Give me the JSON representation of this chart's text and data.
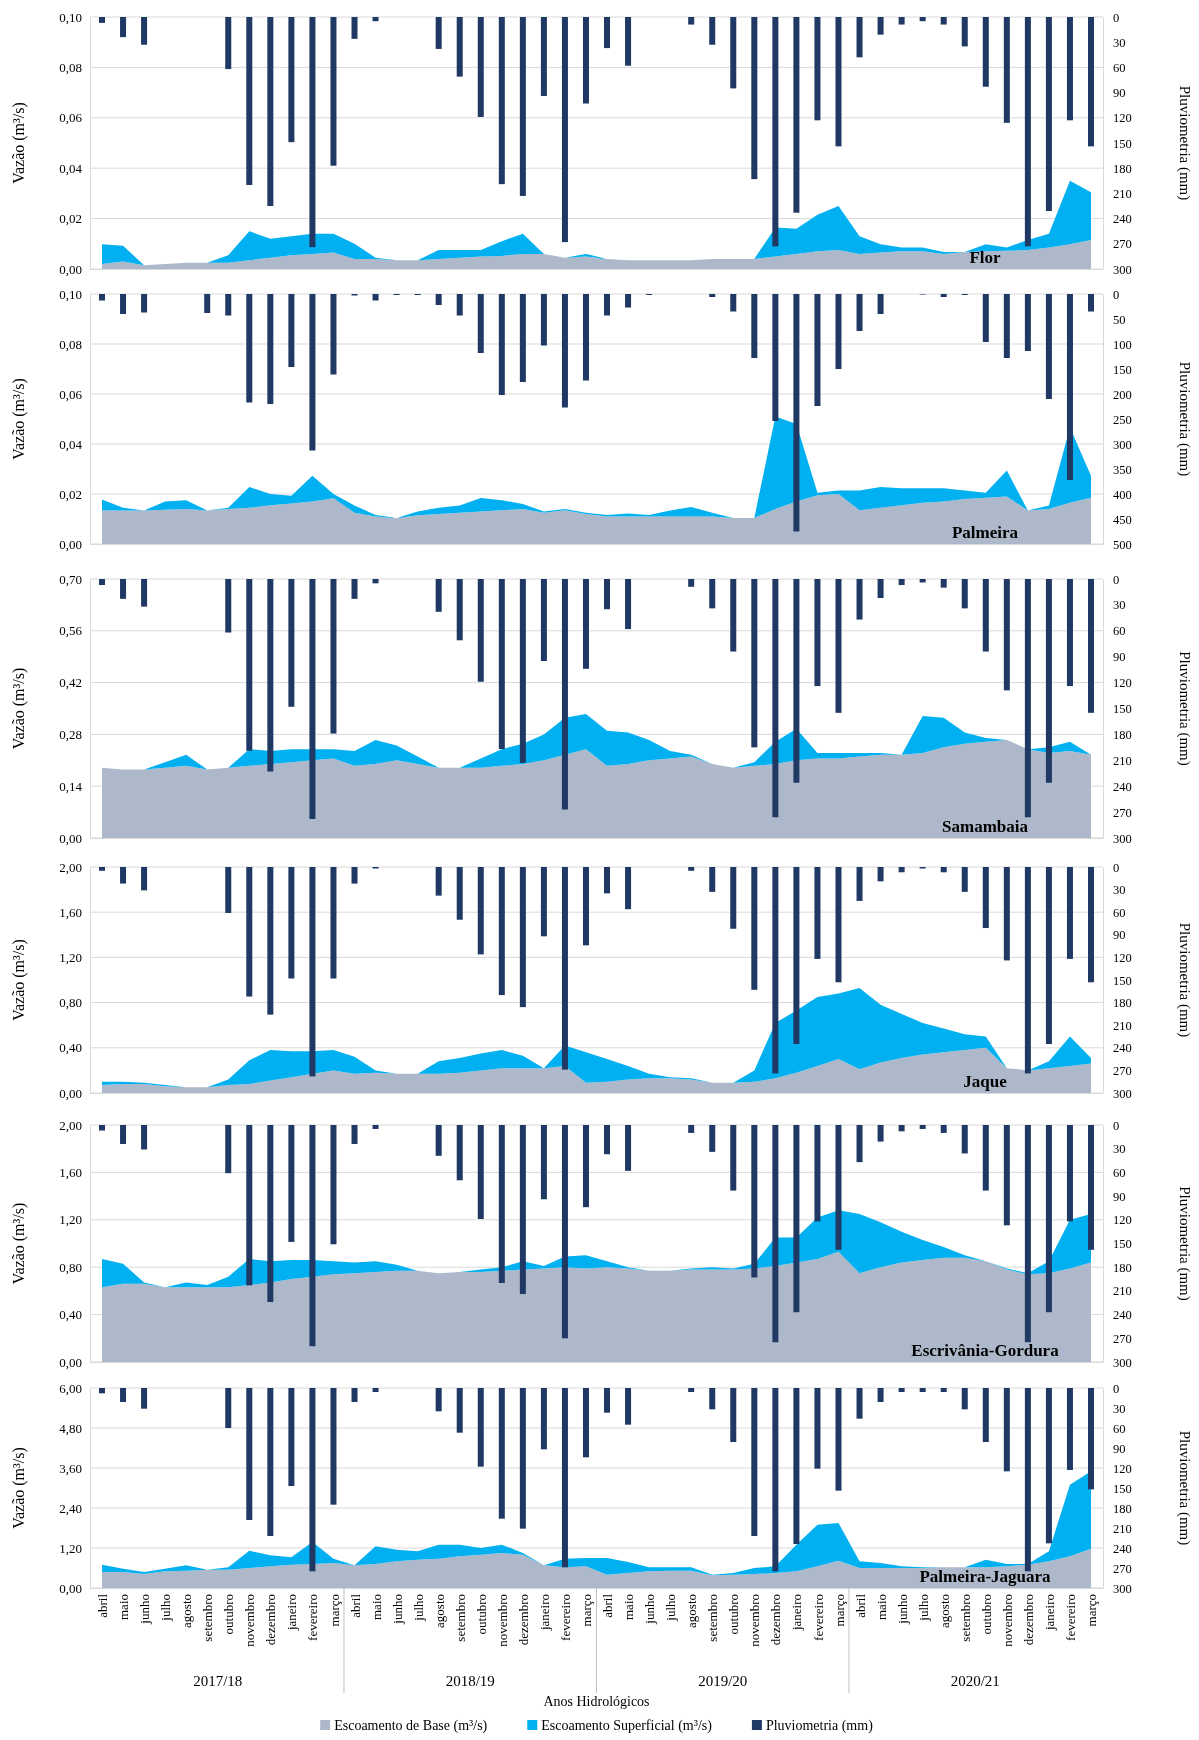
{
  "chart_data": [
    {
      "type": "area",
      "title": "Flor",
      "stacked": true,
      "grid": "y",
      "ylabel": "Vazão (m³/s)",
      "y2label": "Pluviometria (mm)",
      "categories": [
        null,
        null,
        null,
        null,
        null,
        null,
        null,
        null,
        null,
        null,
        null,
        null,
        null,
        null,
        null,
        null,
        null,
        null,
        null,
        null,
        null,
        null,
        null,
        null,
        null,
        null,
        null,
        null,
        null,
        null,
        null,
        null,
        null,
        null,
        null,
        null,
        null,
        null,
        null,
        null,
        null,
        null,
        null,
        null,
        null,
        null,
        null,
        null
      ],
      "ylim": [
        0,
        0.1
      ],
      "yticks": [
        {
          "value": 0,
          "label": "0,00"
        },
        {
          "value": 0.02,
          "label": "0,02"
        },
        {
          "value": 0.04,
          "label": "0,04"
        },
        {
          "value": 0.06,
          "label": "0,06"
        },
        {
          "value": 0.08,
          "label": "0,08"
        },
        {
          "value": 0.1,
          "label": "0,10"
        }
      ],
      "y2lim": [
        300,
        0
      ],
      "y2ticks": [
        0,
        30,
        60,
        90,
        120,
        150,
        180,
        210,
        240,
        270,
        300
      ],
      "series": [
        {
          "color": "#adb9ca",
          "values": [
            0.002,
            0.003,
            0.0015,
            0.002,
            0.0025,
            0.0025,
            0.0025,
            0.0035,
            0.0045,
            0.0055,
            0.006,
            0.0065,
            0.004,
            0.004,
            0.0035,
            0.0035,
            0.004,
            0.0045,
            0.005,
            0.0052,
            0.006,
            0.006,
            0.0045,
            0.005,
            0.004,
            0.0035,
            0.0035,
            0.0035,
            0.0035,
            0.004,
            0.004,
            0.004,
            0.005,
            0.006,
            0.007,
            0.0075,
            0.006,
            0.0065,
            0.007,
            0.007,
            0.006,
            0.0067,
            0.007,
            0.0072,
            0.0075,
            0.0085,
            0.0098,
            0.0115
          ]
        },
        {
          "color": "#00b0f0",
          "values": [
            0.0078,
            0.0062,
            0,
            0,
            0,
            0,
            0.003,
            0.0115,
            0.0075,
            0.0075,
            0.008,
            0.0075,
            0.006,
            0.0005,
            0,
            0,
            0.0035,
            0.003,
            0.0025,
            0.0058,
            0.008,
            0,
            0,
            0.001,
            0,
            0,
            0,
            0,
            0,
            0,
            0,
            0,
            0.0115,
            0.01,
            0.0145,
            0.0175,
            0.007,
            0.0033,
            0.0015,
            0.0015,
            0.0007,
            0,
            0.0028,
            0.0013,
            0.004,
            0.0055,
            0.0252,
            0.019
          ]
        },
        {
          "type": "bar",
          "axis": "y2",
          "color": "#1f3864",
          "values": [
            7,
            24,
            33,
            0,
            0,
            0,
            62,
            200,
            225,
            149,
            274,
            177,
            26,
            5,
            0,
            0,
            38,
            71,
            119,
            199,
            213,
            94,
            268,
            103,
            37,
            58,
            0,
            0,
            9,
            33,
            85,
            193,
            273,
            233,
            123,
            154,
            48,
            21,
            9,
            5,
            9,
            35,
            83,
            126,
            273,
            231,
            123,
            154
          ]
        }
      ]
    },
    {
      "type": "area",
      "title": "Palmeira",
      "stacked": true,
      "grid": "y",
      "ylabel": "Vazão (m³/s)",
      "y2label": "Pluviometria (mm)",
      "categories": [
        null,
        null,
        null,
        null,
        null,
        null,
        null,
        null,
        null,
        null,
        null,
        null,
        null,
        null,
        null,
        null,
        null,
        null,
        null,
        null,
        null,
        null,
        null,
        null,
        null,
        null,
        null,
        null,
        null,
        null,
        null,
        null,
        null,
        null,
        null,
        null,
        null,
        null,
        null,
        null,
        null,
        null,
        null,
        null,
        null,
        null,
        null,
        null
      ],
      "ylim": [
        0,
        0.1
      ],
      "yticks": [
        {
          "value": 0,
          "label": "0,00"
        },
        {
          "value": 0.02,
          "label": "0,02"
        },
        {
          "value": 0.04,
          "label": "0,04"
        },
        {
          "value": 0.06,
          "label": "0,06"
        },
        {
          "value": 0.08,
          "label": "0,08"
        },
        {
          "value": 0.1,
          "label": "0,10"
        }
      ],
      "y2lim": [
        500,
        0
      ],
      "y2ticks": [
        0,
        50,
        100,
        150,
        200,
        250,
        300,
        350,
        400,
        450,
        500
      ],
      "series": [
        {
          "color": "#adb9ca",
          "values": [
            0.0134,
            0.0134,
            0.0134,
            0.0137,
            0.014,
            0.0134,
            0.014,
            0.0145,
            0.0155,
            0.0162,
            0.017,
            0.0183,
            0.0125,
            0.011,
            0.0104,
            0.0115,
            0.012,
            0.0125,
            0.013,
            0.0135,
            0.014,
            0.0125,
            0.0135,
            0.012,
            0.011,
            0.011,
            0.011,
            0.011,
            0.011,
            0.011,
            0.0104,
            0.0104,
            0.014,
            0.017,
            0.0195,
            0.02,
            0.0135,
            0.0145,
            0.0155,
            0.0165,
            0.017,
            0.018,
            0.0185,
            0.019,
            0.0134,
            0.014,
            0.0165,
            0.0185
          ]
        },
        {
          "color": "#00b0f0",
          "values": [
            0.0044,
            0.0011,
            0,
            0.0033,
            0.0035,
            0,
            0.0005,
            0.0083,
            0.0045,
            0.0031,
            0.0103,
            0.0017,
            0.0029,
            0.0006,
            0,
            0.0015,
            0.0025,
            0.0029,
            0.0054,
            0.004,
            0.002,
            0.0005,
            0.0005,
            0.0005,
            0.0006,
            0.0012,
            0.0006,
            0.0024,
            0.0038,
            0.0015,
            0,
            0,
            0.037,
            0.031,
            0.001,
            0.0014,
            0.0079,
            0.0083,
            0.0068,
            0.0058,
            0.0053,
            0.0034,
            0.002,
            0.0104,
            0,
            0.0014,
            0.0301,
            0.0088
          ]
        },
        {
          "type": "bar",
          "axis": "y2",
          "color": "#1f3864",
          "values": [
            13,
            40,
            37,
            0,
            0,
            38,
            43,
            217,
            220,
            146,
            313,
            161,
            3,
            13,
            2,
            2,
            22,
            43,
            118,
            202,
            176,
            103,
            227,
            173,
            43,
            27,
            2,
            0,
            0,
            6,
            35,
            128,
            254,
            475,
            224,
            150,
            74,
            40,
            0,
            1,
            6,
            2,
            96,
            128,
            114,
            210,
            372,
            35
          ]
        }
      ]
    },
    {
      "type": "area",
      "title": "Samambaia",
      "stacked": true,
      "grid": "y",
      "ylabel": "Vazão (m³/s)",
      "y2label": "Pluviometria (mm)",
      "categories": [
        null,
        null,
        null,
        null,
        null,
        null,
        null,
        null,
        null,
        null,
        null,
        null,
        null,
        null,
        null,
        null,
        null,
        null,
        null,
        null,
        null,
        null,
        null,
        null,
        null,
        null,
        null,
        null,
        null,
        null,
        null,
        null,
        null,
        null,
        null,
        null,
        null,
        null,
        null,
        null,
        null,
        null,
        null,
        null,
        null,
        null,
        null,
        null
      ],
      "ylim": [
        0,
        0.7
      ],
      "yticks": [
        {
          "value": 0,
          "label": "0,00"
        },
        {
          "value": 0.14,
          "label": "0,14"
        },
        {
          "value": 0.28,
          "label": "0,28"
        },
        {
          "value": 0.42,
          "label": "0,42"
        },
        {
          "value": 0.56,
          "label": "0,56"
        },
        {
          "value": 0.7,
          "label": "0,70"
        }
      ],
      "y2lim": [
        300,
        0
      ],
      "y2ticks": [
        0,
        30,
        60,
        90,
        120,
        150,
        180,
        210,
        240,
        270,
        300
      ],
      "series": [
        {
          "color": "#adb9ca",
          "values": [
            0.19,
            0.185,
            0.185,
            0.19,
            0.195,
            0.185,
            0.19,
            0.195,
            0.2,
            0.205,
            0.21,
            0.215,
            0.195,
            0.2,
            0.21,
            0.2,
            0.19,
            0.19,
            0.19,
            0.195,
            0.2,
            0.21,
            0.225,
            0.24,
            0.195,
            0.2,
            0.21,
            0.215,
            0.22,
            0.2,
            0.19,
            0.195,
            0.2,
            0.21,
            0.215,
            0.215,
            0.22,
            0.225,
            0.225,
            0.23,
            0.245,
            0.255,
            0.26,
            0.265,
            0.24,
            0.23,
            0.235,
            0.225
          ]
        },
        {
          "color": "#00b0f0",
          "values": [
            0,
            0,
            0,
            0.015,
            0.03,
            0,
            0,
            0.045,
            0.035,
            0.035,
            0.03,
            0.025,
            0.04,
            0.065,
            0.04,
            0.02,
            0,
            0,
            0.025,
            0.045,
            0.055,
            0.07,
            0.1,
            0.095,
            0.095,
            0.085,
            0.055,
            0.02,
            0.005,
            0,
            0,
            0.01,
            0.06,
            0.085,
            0.015,
            0.015,
            0.01,
            0.005,
            0,
            0.1,
            0.08,
            0.03,
            0.01,
            0,
            0,
            0.015,
            0.025,
            0
          ]
        },
        {
          "type": "bar",
          "axis": "y2",
          "color": "#1f3864",
          "values": [
            7,
            23,
            32,
            0,
            0,
            0,
            62,
            199,
            223,
            148,
            278,
            179,
            23,
            5,
            0,
            0,
            38,
            71,
            119,
            197,
            213,
            95,
            267,
            104,
            35,
            58,
            0,
            0,
            9,
            34,
            84,
            195,
            276,
            236,
            124,
            155,
            47,
            22,
            7,
            4,
            10,
            34,
            84,
            129,
            276,
            236,
            124,
            155
          ]
        }
      ]
    },
    {
      "type": "area",
      "title": "Jaque",
      "stacked": true,
      "grid": "y",
      "ylabel": "Vazão (m³/s)",
      "y2label": "Pluviometria (mm)",
      "categories": [
        null,
        null,
        null,
        null,
        null,
        null,
        null,
        null,
        null,
        null,
        null,
        null,
        null,
        null,
        null,
        null,
        null,
        null,
        null,
        null,
        null,
        null,
        null,
        null,
        null,
        null,
        null,
        null,
        null,
        null,
        null,
        null,
        null,
        null,
        null,
        null,
        null,
        null,
        null,
        null,
        null,
        null,
        null,
        null,
        null,
        null,
        null,
        null
      ],
      "ylim": [
        0,
        2
      ],
      "yticks": [
        {
          "value": 0,
          "label": "0,00"
        },
        {
          "value": 0.4,
          "label": "0,40"
        },
        {
          "value": 0.8,
          "label": "0,80"
        },
        {
          "value": 1.2,
          "label": "1,20"
        },
        {
          "value": 1.6,
          "label": "1,60"
        },
        {
          "value": 2,
          "label": "2,00"
        }
      ],
      "y2lim": [
        300,
        0
      ],
      "y2ticks": [
        0,
        30,
        60,
        90,
        120,
        150,
        180,
        210,
        240,
        270,
        300
      ],
      "series": [
        {
          "color": "#adb9ca",
          "values": [
            0.07,
            0.08,
            0.08,
            0.06,
            0.05,
            0.05,
            0.07,
            0.08,
            0.11,
            0.14,
            0.17,
            0.2,
            0.17,
            0.18,
            0.17,
            0.17,
            0.17,
            0.18,
            0.2,
            0.22,
            0.22,
            0.22,
            0.24,
            0.09,
            0.1,
            0.12,
            0.13,
            0.13,
            0.12,
            0.09,
            0.09,
            0.1,
            0.13,
            0.18,
            0.24,
            0.3,
            0.21,
            0.27,
            0.31,
            0.34,
            0.36,
            0.38,
            0.4,
            0.22,
            0.2,
            0.22,
            0.24,
            0.26
          ]
        },
        {
          "color": "#00b0f0",
          "values": [
            0.03,
            0.02,
            0.01,
            0.01,
            0,
            0,
            0.05,
            0.21,
            0.27,
            0.23,
            0.2,
            0.18,
            0.15,
            0.02,
            0,
            0,
            0.11,
            0.13,
            0.15,
            0.16,
            0.11,
            0,
            0.18,
            0.27,
            0.2,
            0.12,
            0.04,
            0.01,
            0.01,
            0,
            0,
            0.1,
            0.49,
            0.55,
            0.61,
            0.58,
            0.72,
            0.51,
            0.39,
            0.28,
            0.21,
            0.14,
            0.1,
            0,
            0,
            0.06,
            0.26,
            0.05
          ]
        },
        {
          "type": "bar",
          "axis": "y2",
          "color": "#1f3864",
          "values": [
            5,
            22,
            31,
            0,
            0,
            0,
            61,
            172,
            196,
            148,
            278,
            148,
            22,
            2,
            0,
            0,
            38,
            70,
            116,
            170,
            186,
            92,
            269,
            104,
            35,
            56,
            0,
            0,
            5,
            33,
            82,
            163,
            274,
            235,
            122,
            153,
            45,
            19,
            7,
            2,
            7,
            33,
            81,
            124,
            274,
            235,
            122,
            153
          ]
        }
      ]
    },
    {
      "type": "area",
      "title": "Escrivânia-Gordura",
      "stacked": true,
      "grid": "y",
      "ylabel": "Vazão (m³/s)",
      "y2label": "Pluviometria (mm)",
      "categories": [
        null,
        null,
        null,
        null,
        null,
        null,
        null,
        null,
        null,
        null,
        null,
        null,
        null,
        null,
        null,
        null,
        null,
        null,
        null,
        null,
        null,
        null,
        null,
        null,
        null,
        null,
        null,
        null,
        null,
        null,
        null,
        null,
        null,
        null,
        null,
        null,
        null,
        null,
        null,
        null,
        null,
        null,
        null,
        null,
        null,
        null,
        null,
        null
      ],
      "ylim": [
        0,
        2
      ],
      "yticks": [
        {
          "value": 0,
          "label": "0,00"
        },
        {
          "value": 0.4,
          "label": "0,40"
        },
        {
          "value": 0.8,
          "label": "0,80"
        },
        {
          "value": 1.2,
          "label": "1,20"
        },
        {
          "value": 1.6,
          "label": "1,60"
        },
        {
          "value": 2,
          "label": "2,00"
        }
      ],
      "y2lim": [
        300,
        0
      ],
      "y2ticks": [
        0,
        30,
        60,
        90,
        120,
        150,
        180,
        210,
        240,
        270,
        300
      ],
      "series": [
        {
          "color": "#adb9ca",
          "values": [
            0.63,
            0.66,
            0.66,
            0.63,
            0.63,
            0.63,
            0.63,
            0.65,
            0.67,
            0.7,
            0.72,
            0.74,
            0.75,
            0.76,
            0.77,
            0.77,
            0.75,
            0.76,
            0.76,
            0.77,
            0.78,
            0.79,
            0.8,
            0.79,
            0.8,
            0.79,
            0.77,
            0.77,
            0.78,
            0.78,
            0.78,
            0.79,
            0.81,
            0.84,
            0.87,
            0.93,
            0.75,
            0.8,
            0.84,
            0.86,
            0.88,
            0.88,
            0.85,
            0.78,
            0.74,
            0.75,
            0.79,
            0.84
          ]
        },
        {
          "color": "#00b0f0",
          "values": [
            0.24,
            0.17,
            0.01,
            0,
            0.04,
            0.02,
            0.09,
            0.22,
            0.18,
            0.16,
            0.14,
            0.11,
            0.09,
            0.09,
            0.05,
            0,
            0,
            0,
            0.02,
            0.03,
            0.07,
            0.02,
            0.09,
            0.11,
            0.05,
            0.01,
            0,
            0,
            0.01,
            0.02,
            0.01,
            0.04,
            0.24,
            0.21,
            0.35,
            0.35,
            0.5,
            0.38,
            0.26,
            0.17,
            0.09,
            0.02,
            0,
            0.01,
            0.01,
            0.1,
            0.41,
            0.41
          ]
        },
        {
          "type": "bar",
          "axis": "y2",
          "color": "#1f3864",
          "values": [
            7,
            24,
            31,
            0,
            0,
            0,
            61,
            203,
            224,
            148,
            280,
            151,
            24,
            5,
            0,
            0,
            39,
            70,
            119,
            200,
            214,
            94,
            270,
            104,
            37,
            58,
            0,
            0,
            10,
            34,
            83,
            193,
            275,
            237,
            122,
            158,
            47,
            21,
            8,
            5,
            10,
            36,
            83,
            127,
            275,
            237,
            122,
            158
          ]
        }
      ]
    },
    {
      "type": "area",
      "title": "Palmeira-Jaguara",
      "stacked": true,
      "grid": "y",
      "legend": "bottom",
      "ylabel": "Vazão (m³/s)",
      "y2label": "Pluviometria (mm)",
      "xlabel": "Anos Hidrológicos",
      "annotations": [
        "2017/18",
        "2018/19",
        "2019/20",
        "2020/21"
      ],
      "categories": [
        "abril",
        "maio",
        "junho",
        "julho",
        "agosto",
        "setembro",
        "outubro",
        "novembro",
        "dezembro",
        "janeiro",
        "fevereiro",
        "março",
        "abril",
        "maio",
        "junho",
        "julho",
        "agosto",
        "setembro",
        "outubro",
        "novembro",
        "dezembro",
        "janeiro",
        "fevereiro",
        "março",
        "abril",
        "maio",
        "junho",
        "julho",
        "agosto",
        "setembro",
        "outubro",
        "novembro",
        "dezembro",
        "janeiro",
        "fevereiro",
        "março",
        "abril",
        "maio",
        "junho",
        "julho",
        "agosto",
        "setembro",
        "outubro",
        "novembro",
        "dezembro",
        "janeiro",
        "fevereiro",
        "março"
      ],
      "ylim": [
        0,
        6
      ],
      "yticks": [
        {
          "value": 0,
          "label": "0,00"
        },
        {
          "value": 1.2,
          "label": "1,20"
        },
        {
          "value": 2.4,
          "label": "2,40"
        },
        {
          "value": 3.6,
          "label": "3,60"
        },
        {
          "value": 4.8,
          "label": "4,80"
        },
        {
          "value": 6,
          "label": "6,00"
        }
      ],
      "y2lim": [
        300,
        0
      ],
      "y2ticks": [
        0,
        30,
        60,
        90,
        120,
        150,
        180,
        210,
        240,
        270,
        300
      ],
      "series": [
        {
          "name": "Escoamento de Base (m³/s)",
          "color": "#adb9ca",
          "values": [
            0.48,
            0.48,
            0.42,
            0.5,
            0.52,
            0.55,
            0.55,
            0.6,
            0.65,
            0.7,
            0.72,
            0.75,
            0.68,
            0.72,
            0.8,
            0.85,
            0.88,
            0.95,
            1,
            1.05,
            1,
            0.68,
            0.62,
            0.65,
            0.4,
            0.45,
            0.5,
            0.52,
            0.52,
            0.38,
            0.4,
            0.42,
            0.45,
            0.5,
            0.65,
            0.82,
            0.6,
            0.6,
            0.6,
            0.6,
            0.62,
            0.62,
            0.62,
            0.65,
            0.7,
            0.8,
            0.95,
            1.18
          ]
        },
        {
          "name": "Escoamento Superficial (m³/s)",
          "color": "#00b0f0",
          "values": [
            0.22,
            0.1,
            0.06,
            0.08,
            0.16,
            0,
            0.07,
            0.52,
            0.33,
            0.22,
            0.66,
            0.13,
            0,
            0.53,
            0.35,
            0.25,
            0.42,
            0.35,
            0.2,
            0.25,
            0.05,
            0,
            0.26,
            0.25,
            0.5,
            0.33,
            0.12,
            0.1,
            0.1,
            0.02,
            0.05,
            0.18,
            0.2,
            0.8,
            1.25,
            1.13,
            0.2,
            0.15,
            0.05,
            0.02,
            0,
            0,
            0.23,
            0.07,
            0.02,
            0.3,
            2.15,
            2.32
          ]
        },
        {
          "type": "bar",
          "axis": "y2",
          "name": "Pluviometria (mm)",
          "color": "#1f3864",
          "values": [
            8,
            21,
            31,
            0,
            0,
            0,
            60,
            198,
            222,
            147,
            275,
            175,
            21,
            6,
            0,
            0,
            35,
            67,
            118,
            196,
            211,
            92,
            269,
            104,
            37,
            55,
            0,
            0,
            6,
            32,
            81,
            222,
            275,
            234,
            121,
            154,
            46,
            21,
            6,
            6,
            6,
            32,
            81,
            125,
            275,
            233,
            123,
            152
          ]
        }
      ]
    }
  ]
}
